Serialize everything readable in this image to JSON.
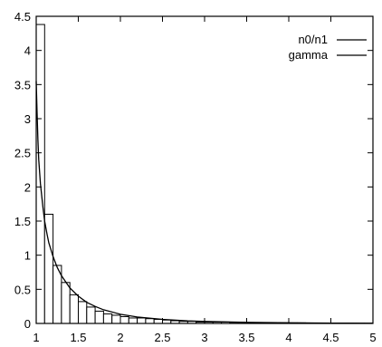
{
  "chart_data": {
    "type": "bar",
    "title": "",
    "xlabel": "",
    "ylabel": "",
    "xlim": [
      1,
      5
    ],
    "ylim": [
      0,
      4.5
    ],
    "grid": false,
    "legend_position": "top-right",
    "x_ticks": [
      "1",
      "1.5",
      "2",
      "2.5",
      "3",
      "3.5",
      "4",
      "4.5",
      "5"
    ],
    "y_ticks": [
      "0",
      "0.5",
      "1",
      "1.5",
      "2",
      "2.5",
      "3",
      "3.5",
      "4",
      "4.5"
    ],
    "x_tick_values": [
      1,
      1.5,
      2,
      2.5,
      3,
      3.5,
      4,
      4.5,
      5
    ],
    "y_tick_values": [
      0,
      0.5,
      1,
      1.5,
      2,
      2.5,
      3,
      3.5,
      4,
      4.5
    ],
    "series": [
      {
        "name": "n0/n1",
        "kind": "histogram",
        "bin_width": 0.1,
        "bin_starts": [
          1.0,
          1.1,
          1.2,
          1.3,
          1.4,
          1.5,
          1.6,
          1.7,
          1.8,
          1.9,
          2.0,
          2.1,
          2.2,
          2.3,
          2.4,
          2.5,
          2.6,
          2.7,
          2.8,
          2.9,
          3.0,
          3.1,
          3.2,
          3.3,
          3.4,
          3.5,
          3.6,
          3.7,
          3.8,
          3.9,
          4.0,
          4.1,
          4.2,
          4.3,
          4.4,
          4.5,
          4.6,
          4.7,
          4.8,
          4.9
        ],
        "values": [
          4.38,
          1.6,
          0.85,
          0.6,
          0.42,
          0.32,
          0.24,
          0.18,
          0.14,
          0.12,
          0.1,
          0.08,
          0.08,
          0.07,
          0.06,
          0.05,
          0.04,
          0.03,
          0.03,
          0.02,
          0.02,
          0.02,
          0.02,
          0.015,
          0.015,
          0.01,
          0.01,
          0.01,
          0.01,
          0.01,
          0.008,
          0.008,
          0.006,
          0.006,
          0.005,
          0.005,
          0.004,
          0.004,
          0.003,
          0.003
        ]
      },
      {
        "name": "gamma",
        "kind": "line",
        "x": [
          1.0,
          1.01,
          1.02,
          1.03,
          1.05,
          1.08,
          1.1,
          1.13,
          1.15,
          1.2,
          1.25,
          1.3,
          1.4,
          1.5,
          1.6,
          1.7,
          1.8,
          2.0,
          2.2,
          2.5,
          2.8,
          3.0,
          3.5,
          4.0,
          4.5,
          5.0
        ],
        "y": [
          3.55,
          3.1,
          2.7,
          2.4,
          2.05,
          1.7,
          1.5,
          1.3,
          1.18,
          0.98,
          0.82,
          0.7,
          0.52,
          0.4,
          0.31,
          0.25,
          0.2,
          0.135,
          0.095,
          0.06,
          0.038,
          0.03,
          0.016,
          0.009,
          0.005,
          0.003
        ]
      }
    ]
  }
}
